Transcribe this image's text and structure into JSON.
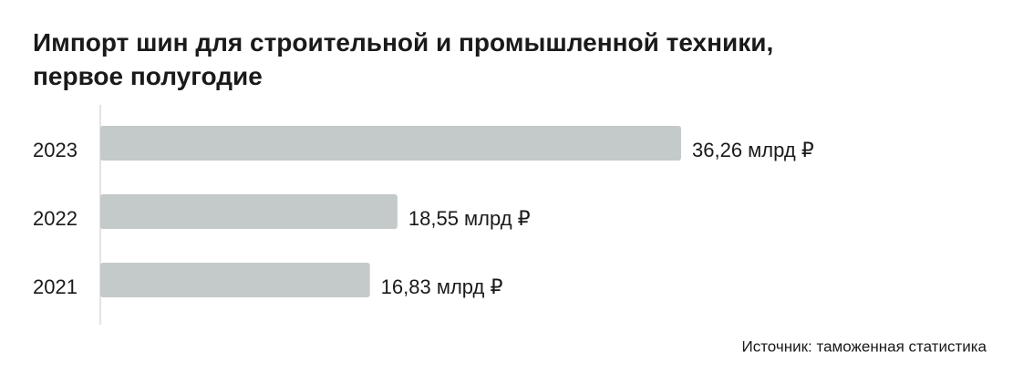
{
  "chart_data": {
    "type": "bar",
    "orientation": "horizontal",
    "title": "Импорт шин для строительной и промышленной техники, первое полугодие",
    "categories": [
      "2023",
      "2022",
      "2021"
    ],
    "values": [
      36.26,
      18.55,
      16.83
    ],
    "value_labels": [
      "36,26 млрд ₽",
      "18,55 млрд ₽",
      "16,83 млрд ₽"
    ],
    "color": "#c4c9c9",
    "source": "Источник: таможенная статистика"
  }
}
